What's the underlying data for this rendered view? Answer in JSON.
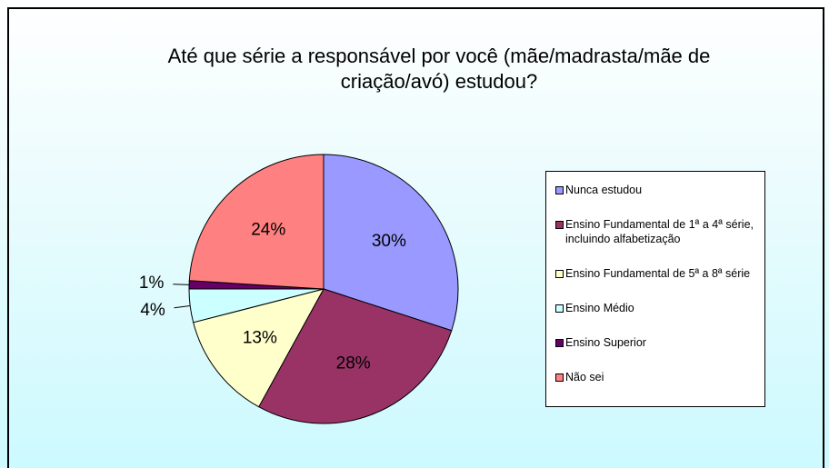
{
  "chart_data": {
    "type": "pie",
    "title": "Até que série a responsável por você (mãe/madrasta/mãe de criação/avó) estudou?",
    "categories": [
      "Nunca estudou",
      "Ensino Fundamental de 1ª a 4ª série, incluindo alfabetização",
      "Ensino Fundamental de 5ª a 8ª série",
      "Ensino Médio",
      "Ensino Superior",
      "Não sei"
    ],
    "values": [
      30,
      28,
      13,
      4,
      1,
      24
    ],
    "value_labels": [
      "30%",
      "28%",
      "13%",
      "4%",
      "1%",
      "24%"
    ],
    "colors": [
      "#9999ff",
      "#993366",
      "#ffffcc",
      "#ccffff",
      "#660066",
      "#ff8080"
    ],
    "legend": "right"
  }
}
